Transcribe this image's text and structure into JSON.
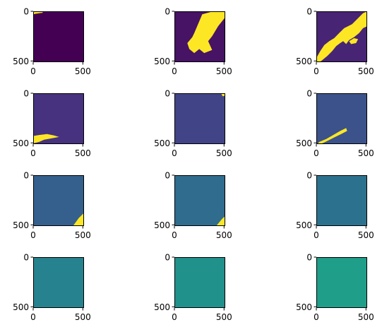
{
  "chart_data": {
    "type": "heatmap",
    "layout": {
      "rows": 4,
      "cols": 3
    },
    "image_extent": {
      "x": [
        0,
        512
      ],
      "y": [
        0,
        512
      ]
    },
    "x_ticks": [
      0,
      500
    ],
    "y_ticks": [
      0,
      500
    ],
    "x_tick_labels": [
      "0",
      "500"
    ],
    "y_tick_labels": [
      "0",
      "500"
    ],
    "panels": [
      {
        "background_color": "#440154",
        "mask_color": "#fde725"
      },
      {
        "background_color": "#471365",
        "mask_color": "#fde725"
      },
      {
        "background_color": "#482475",
        "mask_color": "#fde725"
      },
      {
        "background_color": "#46327e",
        "mask_color": "#fde725"
      },
      {
        "background_color": "#414487",
        "mask_color": "#fde725"
      },
      {
        "background_color": "#3b528b",
        "mask_color": "#fde725"
      },
      {
        "background_color": "#355f8d",
        "mask_color": "#fde725"
      },
      {
        "background_color": "#2f6c8e",
        "mask_color": "#fde725"
      },
      {
        "background_color": "#2c728e",
        "mask_color": "#fde725"
      },
      {
        "background_color": "#26828e",
        "mask_color": "#fde725"
      },
      {
        "background_color": "#21918c",
        "mask_color": "#fde725"
      },
      {
        "background_color": "#1f9e89",
        "mask_color": "#fde725"
      }
    ]
  }
}
